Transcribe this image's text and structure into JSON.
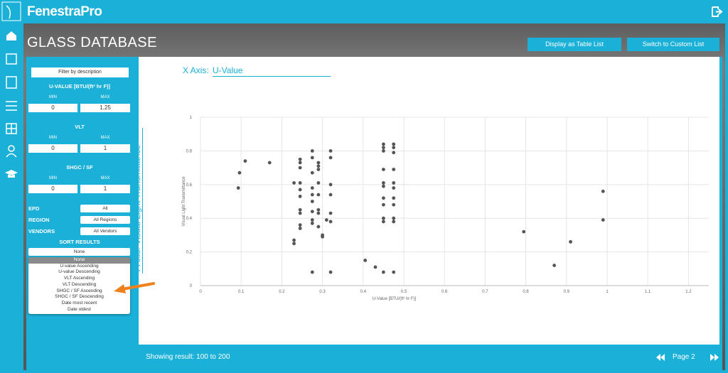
{
  "header": {
    "logo": "FenestraPro"
  },
  "page": {
    "title": "GLASS DATABASE"
  },
  "buttons": [
    "Display as Table List",
    "Switch to Custom List"
  ],
  "filters": {
    "description_button": "Filter by description",
    "ranges": [
      {
        "label": "U-VALUE [BTU/(ft² hr F)]",
        "min_label": "MIN",
        "max_label": "MAX",
        "min": 0,
        "max": 1.25
      },
      {
        "label": "VLT",
        "min_label": "MIN",
        "max_label": "MAX",
        "min": 0,
        "max": 1
      },
      {
        "label": "SHGC / SF",
        "min_label": "MIN",
        "max_label": "MAX",
        "min": 0,
        "max": 1
      }
    ],
    "selects": [
      {
        "label": "EPD",
        "value": "All"
      },
      {
        "label": "REGION",
        "value": "All Regions"
      },
      {
        "label": "VENDORS",
        "value": "All Vendors"
      }
    ],
    "sort": {
      "label": "SORT RESULTS",
      "value": "None",
      "options": [
        "None",
        "U-value Ascending",
        "U-value Descending",
        "VLT Ascending",
        "VLT Descending",
        "SHGC / SF Ascending",
        "SHGC / SF Descending",
        "Date most recent",
        "Date oldest"
      ]
    }
  },
  "axis_selectors": {
    "x_label": "X Axis:",
    "x_value": "U-Value",
    "y_label": "Y Axis:",
    "y_value": "Visual Light Transmittance"
  },
  "footer": {
    "results": "Showing result: 100 to 200",
    "page": "Page 2"
  },
  "chart_data": {
    "type": "scatter",
    "xlabel": "U-Value [BTU/(ft² hr F)]",
    "ylabel": "Visual Light Transmittance",
    "color": "#555555",
    "grid": true,
    "xlim": [
      0,
      1.25
    ],
    "ylim": [
      0,
      1
    ],
    "xticks": [
      0,
      0.1,
      0.2,
      0.3,
      0.4,
      0.5,
      0.6,
      0.7,
      0.8,
      0.9,
      1,
      1.1,
      1.2
    ],
    "yticks": [
      0,
      0.2,
      0.4,
      0.6,
      0.8,
      1
    ],
    "x": [
      0.093,
      0.096,
      0.11,
      0.17,
      0.23,
      0.23,
      0.23,
      0.245,
      0.245,
      0.245,
      0.245,
      0.245,
      0.245,
      0.245,
      0.245,
      0.245,
      0.245,
      0.275,
      0.275,
      0.275,
      0.275,
      0.275,
      0.275,
      0.275,
      0.275,
      0.275,
      0.275,
      0.29,
      0.29,
      0.29,
      0.29,
      0.29,
      0.29,
      0.29,
      0.29,
      0.3,
      0.3,
      0.31,
      0.32,
      0.32,
      0.32,
      0.32,
      0.32,
      0.32,
      0.32,
      0.405,
      0.43,
      0.45,
      0.45,
      0.45,
      0.45,
      0.45,
      0.45,
      0.45,
      0.45,
      0.45,
      0.45,
      0.45,
      0.475,
      0.475,
      0.475,
      0.475,
      0.475,
      0.475,
      0.475,
      0.475,
      0.475,
      0.475,
      0.475,
      0.795,
      0.87,
      0.91,
      0.99,
      0.99
    ],
    "values": [
      0.58,
      0.67,
      0.74,
      0.73,
      0.61,
      0.27,
      0.25,
      0.75,
      0.73,
      0.7,
      0.61,
      0.57,
      0.53,
      0.45,
      0.43,
      0.36,
      0.34,
      0.8,
      0.76,
      0.67,
      0.58,
      0.54,
      0.5,
      0.44,
      0.39,
      0.37,
      0.08,
      0.73,
      0.71,
      0.69,
      0.61,
      0.54,
      0.45,
      0.43,
      0.35,
      0.3,
      0.29,
      0.39,
      0.8,
      0.76,
      0.6,
      0.54,
      0.43,
      0.38,
      0.08,
      0.15,
      0.11,
      0.84,
      0.82,
      0.8,
      0.69,
      0.61,
      0.59,
      0.52,
      0.48,
      0.4,
      0.38,
      0.08,
      0.84,
      0.82,
      0.79,
      0.69,
      0.61,
      0.58,
      0.52,
      0.48,
      0.4,
      0.38,
      0.08,
      0.32,
      0.12,
      0.26,
      0.56,
      0.39
    ]
  }
}
